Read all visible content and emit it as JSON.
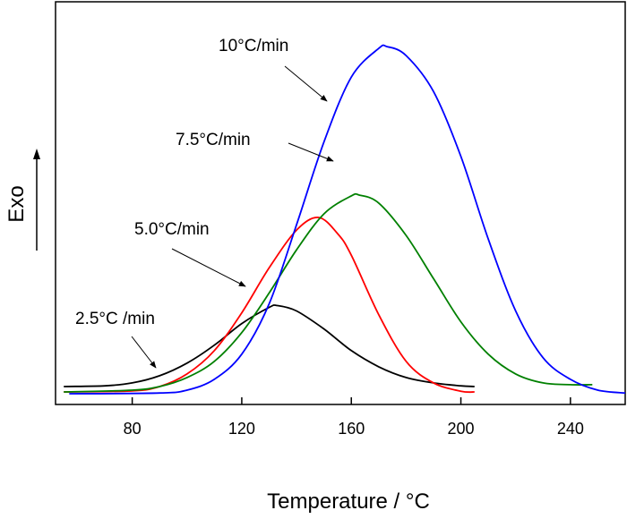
{
  "chart_data": {
    "type": "line",
    "title": "",
    "xlabel": "Temperature / °C",
    "ylabel": "Exo",
    "xlim": [
      52,
      260
    ],
    "ylim": [
      0,
      1
    ],
    "x_ticks": [
      80,
      120,
      160,
      200,
      240
    ],
    "y_ticks": [],
    "grid": false,
    "legend": "none",
    "series": [
      {
        "name": "2.5°C /min",
        "color": "#000000",
        "x": [
          55,
          70,
          80,
          90,
          100,
          110,
          120,
          130,
          133,
          140,
          150,
          160,
          170,
          180,
          190,
          200,
          205
        ],
        "y": [
          0.02,
          0.022,
          0.03,
          0.05,
          0.085,
          0.135,
          0.195,
          0.24,
          0.245,
          0.23,
          0.18,
          0.12,
          0.075,
          0.045,
          0.03,
          0.022,
          0.02
        ]
      },
      {
        "name": "5.0°C/min",
        "color": "#ff0000",
        "x": [
          55,
          80,
          90,
          100,
          110,
          120,
          130,
          140,
          148,
          155,
          160,
          170,
          180,
          190,
          200,
          205
        ],
        "y": [
          0.005,
          0.008,
          0.02,
          0.055,
          0.12,
          0.225,
          0.35,
          0.455,
          0.49,
          0.445,
          0.385,
          0.22,
          0.09,
          0.03,
          0.007,
          0.005
        ]
      },
      {
        "name": "7.5°C/min",
        "color": "#008000",
        "x": [
          55,
          80,
          90,
          100,
          110,
          120,
          130,
          140,
          150,
          160,
          163,
          170,
          180,
          190,
          200,
          210,
          220,
          230,
          240,
          248
        ],
        "y": [
          0.005,
          0.01,
          0.02,
          0.045,
          0.09,
          0.17,
          0.28,
          0.4,
          0.5,
          0.55,
          0.552,
          0.53,
          0.44,
          0.32,
          0.2,
          0.11,
          0.055,
          0.03,
          0.025,
          0.025
        ]
      },
      {
        "name": "10°C/min",
        "color": "#0000ff",
        "x": [
          57,
          90,
          100,
          110,
          120,
          130,
          140,
          150,
          160,
          170,
          173,
          180,
          190,
          200,
          210,
          220,
          230,
          240,
          250,
          260
        ],
        "y": [
          0.0,
          0.002,
          0.01,
          0.04,
          0.11,
          0.25,
          0.47,
          0.7,
          0.88,
          0.96,
          0.965,
          0.94,
          0.84,
          0.66,
          0.43,
          0.23,
          0.1,
          0.04,
          0.01,
          0.002
        ]
      }
    ],
    "annotations": [
      {
        "text": "10°C/min",
        "target": "10°C/min"
      },
      {
        "text": "7.5°C/min",
        "target": "7.5°C/min"
      },
      {
        "text": "5.0°C/min",
        "target": "5.0°C/min"
      },
      {
        "text": "2.5°C /min",
        "target": "2.5°C /min"
      }
    ]
  }
}
